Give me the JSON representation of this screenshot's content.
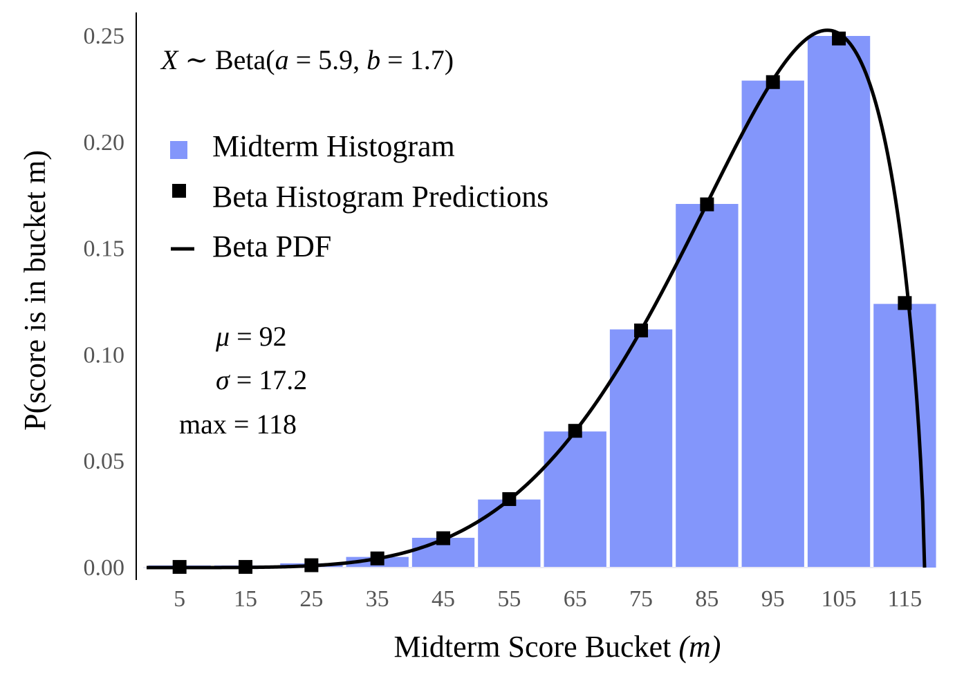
{
  "chart_data": {
    "type": "bar",
    "title": "",
    "xlabel_main": "Midterm Score Bucket ",
    "xlabel_var": "(m)",
    "ylabel": "P(score is in bucket m)",
    "categories": [
      "5",
      "15",
      "25",
      "35",
      "45",
      "55",
      "65",
      "75",
      "85",
      "95",
      "105",
      "115"
    ],
    "x": [
      5,
      15,
      25,
      35,
      45,
      55,
      65,
      75,
      85,
      95,
      105,
      115
    ],
    "series": [
      {
        "name": "Midterm Histogram",
        "kind": "bar",
        "color": "#8396fb",
        "values": [
          0.001,
          0.001,
          0.002,
          0.005,
          0.014,
          0.032,
          0.064,
          0.112,
          0.171,
          0.229,
          0.25,
          0.124
        ]
      },
      {
        "name": "Beta Histogram Predictions",
        "kind": "marker",
        "color": "#000000",
        "values": [
          0.0003,
          0.0003,
          0.0011,
          0.0043,
          0.0138,
          0.0322,
          0.0643,
          0.1115,
          0.1708,
          0.2283,
          0.2488,
          0.1244
        ]
      },
      {
        "name": "Beta PDF",
        "kind": "line",
        "color": "#000000",
        "curve": {
          "a": 5.9,
          "b": 1.7,
          "max": 118,
          "peak": 0.2527,
          "x_start": 0
        }
      }
    ],
    "xlim": [
      0,
      118
    ],
    "ylim": [
      0,
      0.25
    ],
    "yticks": [
      0.0,
      0.05,
      0.1,
      0.15,
      0.2,
      0.25
    ],
    "ytick_labels": [
      "0.00",
      "0.05",
      "0.10",
      "0.15",
      "0.20",
      "0.25"
    ],
    "legend_placement": "upper-left",
    "grid": false,
    "annotations": {
      "distribution_var": "X",
      "distribution_rest": " ∼ Beta(",
      "param_a_var": "a",
      "param_a_val": " = 5.9, ",
      "param_b_var": "b",
      "param_b_val": " = 1.7)",
      "mu_symbol": "μ",
      "mu_value": " = 92",
      "sigma_symbol": "σ",
      "sigma_value": " = 17.2",
      "max_label": "max = 118"
    }
  }
}
